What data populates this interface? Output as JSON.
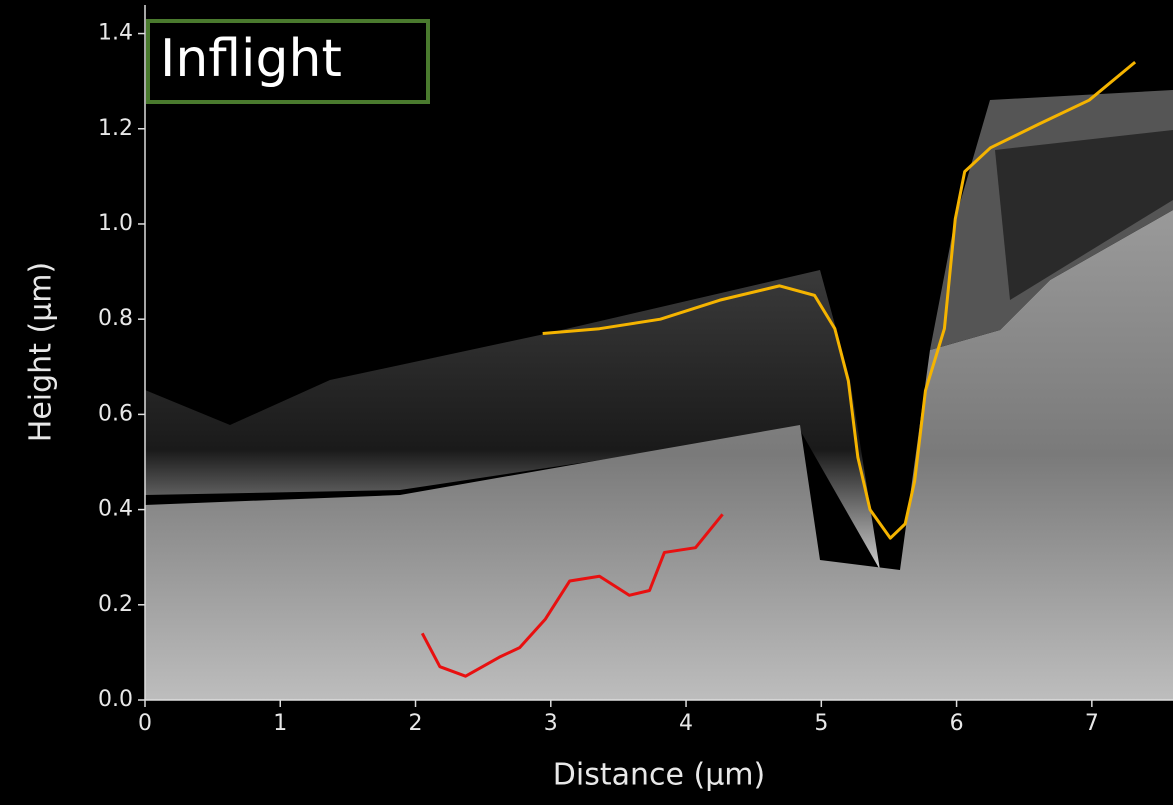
{
  "chart_data": {
    "type": "line",
    "annotation": "Inflight",
    "xlabel": "Distance (μm)",
    "ylabel": "Height (μm)",
    "xlim": [
      0,
      7.6
    ],
    "ylim": [
      0,
      1.46
    ],
    "xticks": [
      0,
      1,
      2,
      3,
      4,
      5,
      6,
      7
    ],
    "yticks": [
      {
        "value": 0,
        "label": "0.0"
      },
      {
        "value": 0.2,
        "label": "0.2"
      },
      {
        "value": 0.4,
        "label": "0.4"
      },
      {
        "value": 0.6,
        "label": "0.6"
      },
      {
        "value": 0.8,
        "label": "0.8"
      },
      {
        "value": 1.0,
        "label": "1.0"
      },
      {
        "value": 1.2,
        "label": "1.2"
      },
      {
        "value": 1.4,
        "label": "1.4"
      }
    ],
    "series": [
      {
        "color": "#f5b400",
        "x": [
          2.94,
          3.36,
          3.81,
          4.25,
          4.69,
          4.95,
          5.1,
          5.2,
          5.27,
          5.36,
          5.51,
          5.62,
          5.69,
          5.77,
          5.91,
          5.99,
          6.06,
          6.25,
          6.61,
          6.98,
          7.32
        ],
        "values": [
          0.77,
          0.78,
          0.8,
          0.84,
          0.87,
          0.85,
          0.78,
          0.67,
          0.51,
          0.4,
          0.34,
          0.37,
          0.46,
          0.65,
          0.78,
          1.01,
          1.11,
          1.16,
          1.21,
          1.26,
          1.34
        ]
      },
      {
        "color": "#e81010",
        "x": [
          2.05,
          2.18,
          2.37,
          2.62,
          2.77,
          2.96,
          3.14,
          3.36,
          3.58,
          3.73,
          3.84,
          4.07,
          4.27
        ],
        "values": [
          0.14,
          0.07,
          0.05,
          0.09,
          0.11,
          0.17,
          0.25,
          0.26,
          0.22,
          0.23,
          0.31,
          0.32,
          0.39
        ]
      }
    ]
  }
}
